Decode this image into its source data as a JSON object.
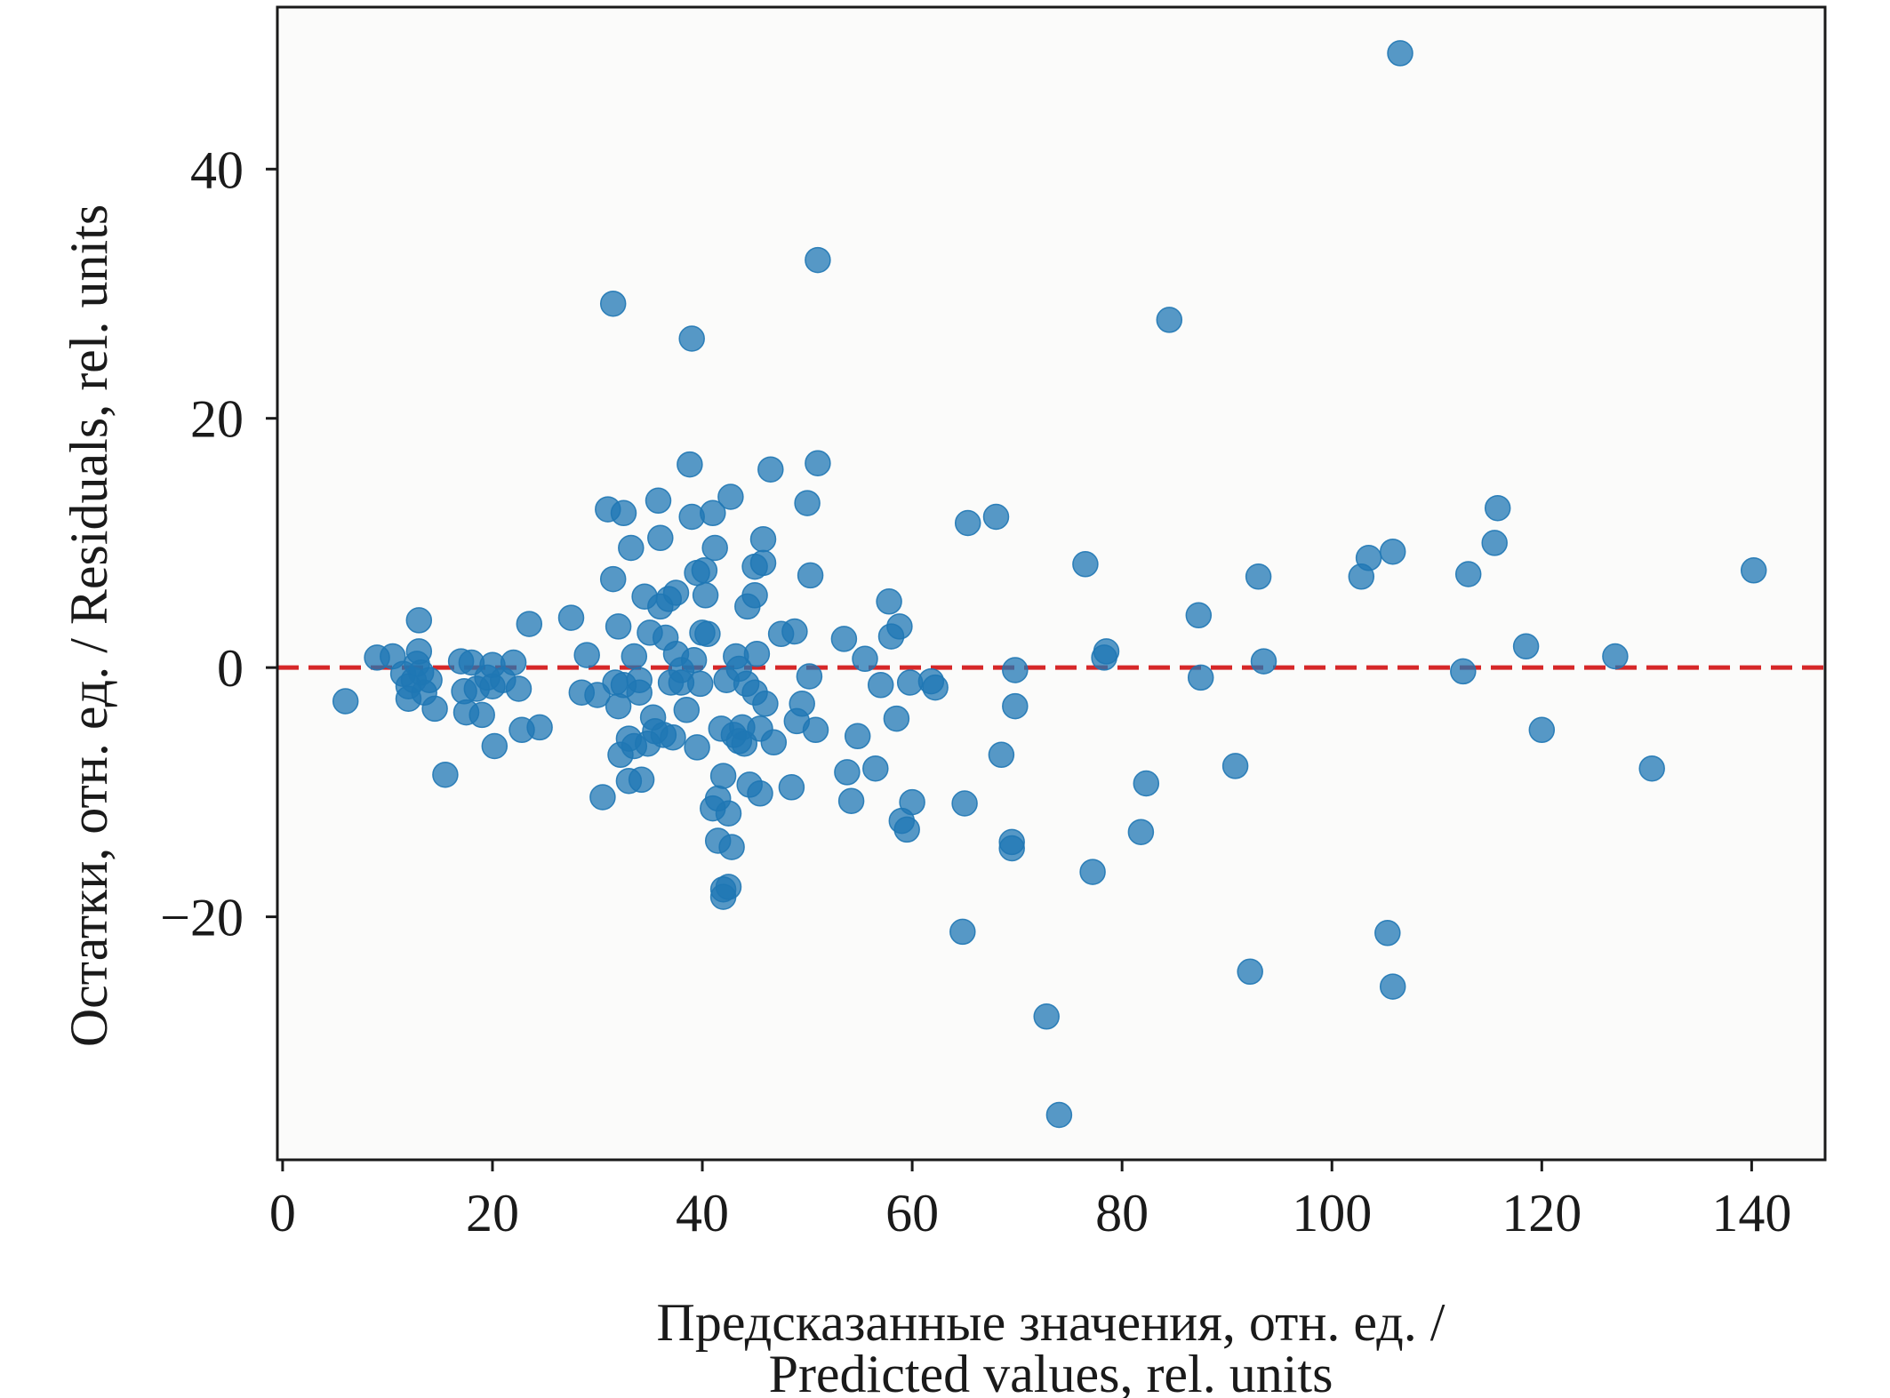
{
  "chart_data": {
    "type": "scatter",
    "xlabel": "Предсказанные значения, отн. ед. /\nPredicted values, rel. units",
    "xlabel_lines": [
      "Предсказанные значения, отн. ед. /",
      "Predicted values, rel. units"
    ],
    "ylabel": "Остатки, отн. ед.  / Residuals, rel. units",
    "xlim": [
      -0.5,
      147
    ],
    "ylim": [
      -39.5,
      53
    ],
    "xticks": [
      0,
      20,
      40,
      60,
      80,
      100,
      120,
      140
    ],
    "xtick_labels": [
      "0",
      "20",
      "40",
      "60",
      "80",
      "100",
      "120",
      "140"
    ],
    "yticks": [
      -20,
      0,
      20,
      40
    ],
    "ytick_labels": [
      "−20",
      "0",
      "20",
      "40"
    ],
    "reference_line": {
      "y": 0,
      "style": "dashed",
      "color": "#d62728"
    },
    "grid": false,
    "colors": {
      "points": "#1f77b4",
      "point_opacity": 0.75,
      "reference_line": "#d62728",
      "frame": "#1a1a1a"
    },
    "points": [
      [
        6,
        -2.7
      ],
      [
        9,
        0.8
      ],
      [
        10.5,
        0.9
      ],
      [
        11.5,
        -0.5
      ],
      [
        12,
        -1.5
      ],
      [
        12,
        -2.5
      ],
      [
        12.5,
        -1
      ],
      [
        12.8,
        0.3
      ],
      [
        13,
        1.3
      ],
      [
        13,
        3.8
      ],
      [
        13.2,
        -0.4
      ],
      [
        13.5,
        -2
      ],
      [
        14,
        -1
      ],
      [
        14.5,
        -3.3
      ],
      [
        15.5,
        -8.6
      ],
      [
        17,
        0.5
      ],
      [
        17.3,
        -1.9
      ],
      [
        17.5,
        -3.6
      ],
      [
        18,
        0.4
      ],
      [
        18.5,
        -1.7
      ],
      [
        19,
        -3.8
      ],
      [
        19.5,
        -0.8
      ],
      [
        20,
        -1.5
      ],
      [
        20,
        0.2
      ],
      [
        20.2,
        -6.3
      ],
      [
        21,
        -1
      ],
      [
        22,
        0.4
      ],
      [
        22.5,
        -1.7
      ],
      [
        22.8,
        -5
      ],
      [
        23.5,
        3.5
      ],
      [
        24.5,
        -4.8
      ],
      [
        27.5,
        4
      ],
      [
        28.5,
        -2
      ],
      [
        29,
        1
      ],
      [
        30,
        -2.2
      ],
      [
        30.5,
        -10.4
      ],
      [
        31,
        12.7
      ],
      [
        31.5,
        29.2
      ],
      [
        31.5,
        7.1
      ],
      [
        31.7,
        -1.2
      ],
      [
        32,
        3.3
      ],
      [
        32,
        -3.1
      ],
      [
        32.2,
        -7
      ],
      [
        32.5,
        12.4
      ],
      [
        32.5,
        -1.4
      ],
      [
        33,
        -5.7
      ],
      [
        33,
        -9.1
      ],
      [
        33.2,
        9.6
      ],
      [
        33.5,
        0.9
      ],
      [
        33.5,
        -6.3
      ],
      [
        34,
        -2
      ],
      [
        34,
        -1
      ],
      [
        34.2,
        -9
      ],
      [
        34.5,
        5.7
      ],
      [
        34.8,
        -6.1
      ],
      [
        35,
        2.8
      ],
      [
        35.3,
        -4
      ],
      [
        35.5,
        -5.1
      ],
      [
        35.8,
        13.4
      ],
      [
        36,
        10.4
      ],
      [
        36,
        4.9
      ],
      [
        36.3,
        -5.4
      ],
      [
        36.5,
        2.4
      ],
      [
        36.8,
        5.5
      ],
      [
        37,
        -1.2
      ],
      [
        37.2,
        -5.6
      ],
      [
        37.5,
        6
      ],
      [
        37.5,
        1.1
      ],
      [
        38,
        -0.2
      ],
      [
        38,
        -1.2
      ],
      [
        38.5,
        -3.4
      ],
      [
        38.8,
        16.3
      ],
      [
        39,
        12.1
      ],
      [
        39,
        26.4
      ],
      [
        39.2,
        0.6
      ],
      [
        39.5,
        -6.4
      ],
      [
        39.5,
        7.6
      ],
      [
        39.8,
        -1.3
      ],
      [
        40,
        2.8
      ],
      [
        40.2,
        7.8
      ],
      [
        40.3,
        5.8
      ],
      [
        40.5,
        2.7
      ],
      [
        41,
        -11.3
      ],
      [
        41,
        12.4
      ],
      [
        41.2,
        9.6
      ],
      [
        41.5,
        -13.9
      ],
      [
        41.5,
        -10.5
      ],
      [
        41.8,
        -4.9
      ],
      [
        42,
        -17.8
      ],
      [
        42,
        -18.4
      ],
      [
        42,
        -8.7
      ],
      [
        42.3,
        -1
      ],
      [
        42.5,
        -17.6
      ],
      [
        42.5,
        -11.7
      ],
      [
        42.7,
        13.7
      ],
      [
        42.8,
        -14.4
      ],
      [
        43,
        -5.4
      ],
      [
        43.2,
        0.9
      ],
      [
        43.5,
        -5.9
      ],
      [
        43.5,
        -0.1
      ],
      [
        43.8,
        -4.8
      ],
      [
        44,
        -6.1
      ],
      [
        44.2,
        -1.3
      ],
      [
        44.3,
        4.9
      ],
      [
        44.5,
        -9.4
      ],
      [
        45,
        8.1
      ],
      [
        45,
        5.8
      ],
      [
        45,
        -2
      ],
      [
        45.2,
        1.1
      ],
      [
        45.5,
        -4.9
      ],
      [
        45.5,
        -10.1
      ],
      [
        45.8,
        10.3
      ],
      [
        45.8,
        8.4
      ],
      [
        46,
        -2.9
      ],
      [
        46.5,
        15.9
      ],
      [
        46.8,
        -6
      ],
      [
        47.5,
        2.7
      ],
      [
        48.5,
        -9.6
      ],
      [
        48.8,
        2.9
      ],
      [
        49,
        -4.3
      ],
      [
        49.5,
        -2.9
      ],
      [
        50,
        13.2
      ],
      [
        50.2,
        -0.7
      ],
      [
        50.3,
        7.4
      ],
      [
        50.8,
        -5
      ],
      [
        51,
        32.7
      ],
      [
        51,
        16.4
      ],
      [
        53.5,
        2.3
      ],
      [
        53.8,
        -8.4
      ],
      [
        54.2,
        -10.7
      ],
      [
        54.8,
        -5.5
      ],
      [
        55.5,
        0.7
      ],
      [
        56.5,
        -8.1
      ],
      [
        57,
        -1.4
      ],
      [
        57.8,
        5.3
      ],
      [
        58,
        2.5
      ],
      [
        58.5,
        -4.1
      ],
      [
        58.8,
        3.3
      ],
      [
        59,
        -12.3
      ],
      [
        59.5,
        -13
      ],
      [
        59.8,
        -1.2
      ],
      [
        60,
        -10.8
      ],
      [
        61.8,
        -1.1
      ],
      [
        62.2,
        -1.6
      ],
      [
        64.8,
        -21.2
      ],
      [
        65,
        -10.9
      ],
      [
        65.3,
        11.6
      ],
      [
        68,
        12.1
      ],
      [
        68.5,
        -7
      ],
      [
        69.5,
        -14
      ],
      [
        69.5,
        -14.5
      ],
      [
        69.8,
        -3.1
      ],
      [
        69.8,
        -0.2
      ],
      [
        72.8,
        -28
      ],
      [
        74,
        -35.9
      ],
      [
        76.5,
        8.3
      ],
      [
        77.2,
        -16.4
      ],
      [
        78.3,
        0.8
      ],
      [
        78.5,
        1.3
      ],
      [
        81.8,
        -13.2
      ],
      [
        82.3,
        -9.3
      ],
      [
        84.5,
        27.9
      ],
      [
        87.3,
        4.2
      ],
      [
        87.5,
        -0.8
      ],
      [
        90.8,
        -7.9
      ],
      [
        92.2,
        -24.4
      ],
      [
        93,
        7.3
      ],
      [
        93.5,
        0.5
      ],
      [
        102.8,
        7.3
      ],
      [
        103.5,
        8.8
      ],
      [
        105.3,
        -21.3
      ],
      [
        105.8,
        9.3
      ],
      [
        105.8,
        -25.6
      ],
      [
        106.5,
        49.3
      ],
      [
        112.5,
        -0.3
      ],
      [
        113,
        7.5
      ],
      [
        115.5,
        10
      ],
      [
        115.8,
        12.8
      ],
      [
        118.5,
        1.7
      ],
      [
        120,
        -5
      ],
      [
        127,
        0.9
      ],
      [
        130.5,
        -8.1
      ],
      [
        140.2,
        7.8
      ]
    ]
  }
}
